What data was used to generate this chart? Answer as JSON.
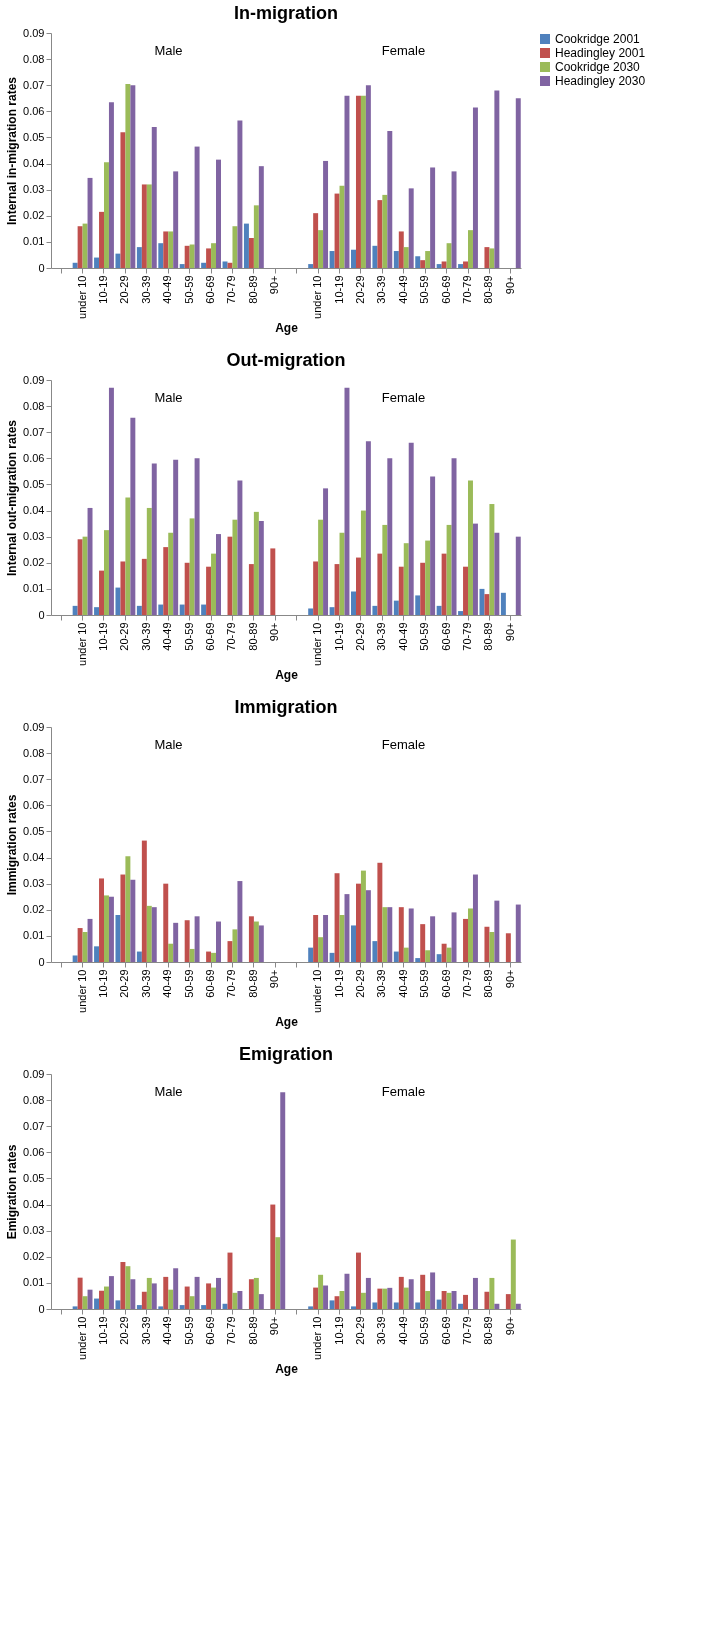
{
  "chart_data": [
    {
      "type": "bar",
      "title": "In-migration",
      "xlabel": "Age",
      "ylabel": "Internal in-migration rates",
      "ylim": [
        0,
        0.09
      ],
      "yticks": [
        0,
        0.01,
        0.02,
        0.03,
        0.04,
        0.05,
        0.06,
        0.07,
        0.08,
        0.09
      ],
      "grid": false,
      "legend": "right",
      "annotations": [
        "Male",
        "Female"
      ],
      "categories": [
        null,
        "under 10",
        "10-19",
        "20-29",
        "30-39",
        "40-49",
        "50-59",
        "60-69",
        "70-79",
        "80-89",
        "90+",
        null,
        "under 10",
        "10-19",
        "20-29",
        "30-39",
        "40-49",
        "50-59",
        "60-69",
        "70-79",
        "80-89",
        "90+"
      ],
      "series": [
        {
          "name": "Cookridge 2001",
          "color": "#4f81bd",
          "values": [
            null,
            0.002,
            0.004,
            0.0055,
            0.008,
            0.0095,
            0.0015,
            0.002,
            0.0025,
            0.017,
            0,
            null,
            0.0015,
            0.0065,
            0.007,
            0.0085,
            0.0065,
            0.0045,
            0.0015,
            0.0015,
            0,
            0
          ]
        },
        {
          "name": "Headingley 2001",
          "color": "#c0504d",
          "values": [
            null,
            0.016,
            0.0215,
            0.052,
            0.032,
            0.014,
            0.0085,
            0.0075,
            0.002,
            0.0115,
            0,
            null,
            0.021,
            0.0285,
            0.066,
            0.026,
            0.014,
            0.003,
            0.0025,
            0.0025,
            0.008,
            0
          ]
        },
        {
          "name": "Cookridge 2030",
          "color": "#9bbb59",
          "values": [
            null,
            0.017,
            0.0405,
            0.0705,
            0.032,
            0.014,
            0.009,
            0.0095,
            0.016,
            0.024,
            0,
            null,
            0.0145,
            0.0315,
            0.066,
            0.028,
            0.008,
            0.0065,
            0.0095,
            0.0145,
            0.0075,
            0
          ]
        },
        {
          "name": "Headingley 2030",
          "color": "#8064a2",
          "values": [
            null,
            0.0345,
            0.0635,
            0.07,
            0.054,
            0.037,
            0.0465,
            0.0415,
            0.0565,
            0.039,
            0,
            null,
            0.041,
            0.066,
            0.07,
            0.0525,
            0.0305,
            0.0385,
            0.037,
            0.0615,
            0.068,
            0.065
          ]
        }
      ]
    },
    {
      "type": "bar",
      "title": "Out-migration",
      "xlabel": "Age",
      "ylabel": "Internal out-migration rates",
      "ylim": [
        0,
        0.09
      ],
      "yticks": [
        0,
        0.01,
        0.02,
        0.03,
        0.04,
        0.05,
        0.06,
        0.07,
        0.08,
        0.09
      ],
      "grid": false,
      "legend": "right",
      "annotations": [
        "Male",
        "Female"
      ],
      "categories": [
        null,
        "under 10",
        "10-19",
        "20-29",
        "30-39",
        "40-49",
        "50-59",
        "60-69",
        "70-79",
        "80-89",
        "90+",
        null,
        "under 10",
        "10-19",
        "20-29",
        "30-39",
        "40-49",
        "50-59",
        "60-69",
        "70-79",
        "80-89",
        "90+"
      ],
      "series": [
        {
          "name": "Cookridge 2001",
          "color": "#4f81bd",
          "values": [
            null,
            0.0035,
            0.003,
            0.0105,
            0.0035,
            0.004,
            0.004,
            0.004,
            0,
            0,
            0,
            null,
            0.0025,
            0.003,
            0.009,
            0.0035,
            0.0055,
            0.0075,
            0.0035,
            0.0015,
            0.01,
            0.0085
          ]
        },
        {
          "name": "Headingley 2001",
          "color": "#c0504d",
          "values": [
            null,
            0.029,
            0.017,
            0.0205,
            0.0215,
            0.026,
            0.02,
            0.0185,
            0.03,
            0.0195,
            0.0255,
            null,
            0.0205,
            0.0195,
            0.022,
            0.0235,
            0.0185,
            0.02,
            0.0235,
            0.0185,
            0.008,
            0
          ]
        },
        {
          "name": "Cookridge 2030",
          "color": "#9bbb59",
          "values": [
            null,
            0.03,
            0.0325,
            0.045,
            0.041,
            0.0315,
            0.037,
            0.0235,
            0.0365,
            0.0395,
            0,
            null,
            0.0365,
            0.0315,
            0.04,
            0.0345,
            0.0275,
            0.0285,
            0.0345,
            0.0515,
            0.0425,
            0
          ]
        },
        {
          "name": "Headingley 2030",
          "color": "#8064a2",
          "values": [
            null,
            0.041,
            0.087,
            0.0755,
            0.058,
            0.0595,
            0.06,
            0.031,
            0.0515,
            0.036,
            0,
            null,
            0.0485,
            0.087,
            0.0665,
            0.06,
            0.066,
            0.053,
            0.06,
            0.035,
            0.0315,
            0.03
          ]
        }
      ]
    },
    {
      "type": "bar",
      "title": "Immigration",
      "xlabel": "Age",
      "ylabel": "Immigration rates",
      "ylim": [
        0,
        0.09
      ],
      "yticks": [
        0,
        0.01,
        0.02,
        0.03,
        0.04,
        0.05,
        0.06,
        0.07,
        0.08,
        0.09
      ],
      "grid": false,
      "legend": "right",
      "annotations": [
        "Male",
        "Female"
      ],
      "categories": [
        null,
        "under 10",
        "10-19",
        "20-29",
        "30-39",
        "40-49",
        "50-59",
        "60-69",
        "70-79",
        "80-89",
        "90+",
        null,
        "under 10",
        "10-19",
        "20-29",
        "30-39",
        "40-49",
        "50-59",
        "60-69",
        "70-79",
        "80-89",
        "90+"
      ],
      "series": [
        {
          "name": "Cookridge 2001",
          "color": "#4f81bd",
          "values": [
            null,
            0.0025,
            0.006,
            0.018,
            0.004,
            0,
            0,
            0,
            0,
            0,
            0,
            null,
            0.0055,
            0.0035,
            0.014,
            0.008,
            0.004,
            0.0015,
            0.003,
            0,
            0,
            0
          ]
        },
        {
          "name": "Headingley 2001",
          "color": "#c0504d",
          "values": [
            null,
            0.013,
            0.032,
            0.0335,
            0.0465,
            0.03,
            0.016,
            0.004,
            0.008,
            0.0175,
            0,
            null,
            0.018,
            0.034,
            0.03,
            0.038,
            0.021,
            0.0145,
            0.007,
            0.0165,
            0.0135,
            0.011
          ]
        },
        {
          "name": "Cookridge 2030",
          "color": "#9bbb59",
          "values": [
            null,
            0.0115,
            0.0255,
            0.0405,
            0.0215,
            0.007,
            0.005,
            0.0035,
            0.0125,
            0.0155,
            0,
            null,
            0.0095,
            0.018,
            0.035,
            0.021,
            0.0055,
            0.0045,
            0.0055,
            0.0205,
            0.0115,
            0
          ]
        },
        {
          "name": "Headingley 2030",
          "color": "#8064a2",
          "values": [
            null,
            0.0165,
            0.025,
            0.0315,
            0.021,
            0.015,
            0.0175,
            0.0155,
            0.031,
            0.014,
            0,
            null,
            0.018,
            0.026,
            0.0275,
            0.021,
            0.0205,
            0.0175,
            0.019,
            0.0335,
            0.0235,
            0.022
          ]
        }
      ]
    },
    {
      "type": "bar",
      "title": "Emigration",
      "xlabel": "Age",
      "ylabel": "Emigration rates",
      "ylim": [
        0,
        0.09
      ],
      "yticks": [
        0,
        0.01,
        0.02,
        0.03,
        0.04,
        0.05,
        0.06,
        0.07,
        0.08,
        0.09
      ],
      "grid": false,
      "legend": "right",
      "annotations": [
        "Male",
        "Female"
      ],
      "categories": [
        null,
        "under 10",
        "10-19",
        "20-29",
        "30-39",
        "40-49",
        "50-59",
        "60-69",
        "70-79",
        "80-89",
        "90+",
        null,
        "under 10",
        "10-19",
        "20-29",
        "30-39",
        "40-49",
        "50-59",
        "60-69",
        "70-79",
        "80-89",
        "90+"
      ],
      "series": [
        {
          "name": "Cookridge 2001",
          "color": "#4f81bd",
          "values": [
            null,
            0.001,
            0.004,
            0.0033,
            0.0015,
            0.001,
            0.0015,
            0.0015,
            0.002,
            0,
            0,
            null,
            0.001,
            0.0033,
            0.001,
            0.0025,
            0.0025,
            0.0025,
            0.0036,
            0.002,
            0,
            0
          ]
        },
        {
          "name": "Headingley 2001",
          "color": "#c0504d",
          "values": [
            null,
            0.012,
            0.007,
            0.018,
            0.0066,
            0.0123,
            0.0086,
            0.0098,
            0.0216,
            0.0114,
            0.04,
            null,
            0.0082,
            0.0049,
            0.0216,
            0.0078,
            0.0123,
            0.0131,
            0.0069,
            0.0054,
            0.0066,
            0.0057
          ]
        },
        {
          "name": "Cookridge 2030",
          "color": "#9bbb59",
          "values": [
            null,
            0.0049,
            0.0086,
            0.0164,
            0.0119,
            0.0074,
            0.0049,
            0.0082,
            0.0062,
            0.0119,
            0.0275,
            null,
            0.0131,
            0.0069,
            0.0062,
            0.0078,
            0.0082,
            0.0069,
            0.0062,
            0,
            0.0119,
            0.0266
          ]
        },
        {
          "name": "Headingley 2030",
          "color": "#8064a2",
          "values": [
            null,
            0.0074,
            0.0126,
            0.0114,
            0.0098,
            0.0156,
            0.0123,
            0.0119,
            0.0069,
            0.0057,
            0.083,
            null,
            0.009,
            0.0135,
            0.0119,
            0.0081,
            0.0114,
            0.014,
            0.0069,
            0.0119,
            0.002,
            0.002
          ]
        }
      ]
    }
  ]
}
